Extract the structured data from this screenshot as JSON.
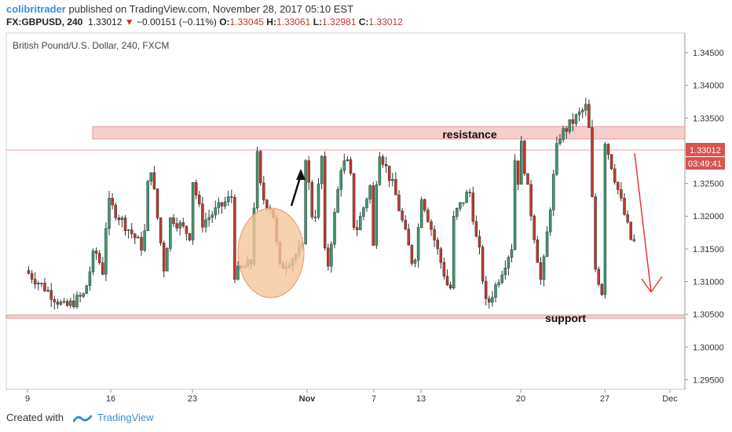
{
  "header": {
    "publisher": "colibritrader",
    "published_text": "published on TradingView.com, November 28, 2017 05:10 EST",
    "symbol": "FX:GBPUSD, 240",
    "last": "1.33012",
    "change": "−0.00151 (−0.11%)",
    "open_label": "O:",
    "open": "1.33045",
    "high_label": "H:",
    "high": "1.33061",
    "low_label": "L:",
    "low": "1.32981",
    "close_label": "C:",
    "close": "1.33012"
  },
  "footer": {
    "created_with": "Created with",
    "brand": "TradingView"
  },
  "colors": {
    "up": "#3d9970",
    "down": "#c0392b",
    "zone_fill": "#f5c6c6",
    "zone_border": "#d98a8a",
    "price_tag": "#d9534f",
    "arrow_red": "#e53935",
    "ellipse_fill": "#f6c79a"
  },
  "chart_data": {
    "type": "candlestick",
    "title": "British Pound/U.S. Dollar, 240, FXCM",
    "y_ticks": [
      "1.34500",
      "1.34000",
      "1.33500",
      "1.33000",
      "1.32500",
      "1.32000",
      "1.31500",
      "1.31000",
      "1.30500",
      "1.30000",
      "1.29500"
    ],
    "x_ticks": [
      "9",
      "16",
      "23",
      "Nov",
      "7",
      "13",
      "20",
      "27",
      "Dec"
    ],
    "ylim": [
      1.2935,
      1.348
    ],
    "last_price_label": "1.33012",
    "countdown_label": "03:49:41",
    "annotations": {
      "resistance_label": "resistance",
      "support_label": "support",
      "resistance_zone": [
        1.3318,
        1.3337
      ],
      "support_zone": [
        1.3044,
        1.3049
      ]
    },
    "path": [
      [
        "9",
        0,
        1.3117
      ],
      [
        "9",
        0.05,
        1.309
      ],
      [
        "9",
        0.1,
        1.306
      ],
      [
        "9",
        0.15,
        1.308
      ],
      [
        "9",
        0.2,
        1.311
      ],
      [
        "9",
        0.3,
        1.315
      ],
      [
        "9",
        0.45,
        1.319
      ],
      [
        "9",
        0.6,
        1.323
      ],
      [
        "9",
        0.75,
        1.327
      ],
      [
        "9",
        0.9,
        1.33
      ],
      [
        "16",
        0,
        1.33
      ],
      [
        "16",
        0.1,
        1.329
      ],
      [
        "16",
        0.2,
        1.327
      ],
      [
        "16",
        0.3,
        1.323
      ],
      [
        "16",
        0.4,
        1.321
      ],
      [
        "16",
        0.5,
        1.318
      ],
      [
        "16",
        0.6,
        1.317
      ],
      [
        "16",
        0.75,
        1.316
      ],
      [
        "16",
        0.9,
        1.315
      ],
      [
        "23",
        0,
        1.317
      ],
      [
        "23",
        0.15,
        1.313
      ],
      [
        "23",
        0.3,
        1.319
      ],
      [
        "23",
        0.45,
        1.326
      ],
      [
        "23",
        0.55,
        1.324
      ],
      [
        "23",
        0.7,
        1.315
      ],
      [
        "23",
        0.85,
        1.31
      ],
      [
        "23",
        1.0,
        1.308
      ],
      [
        "Nov",
        -0.7,
        1.316
      ],
      [
        "Nov",
        -0.5,
        1.32
      ],
      [
        "Nov",
        -0.3,
        1.324
      ],
      [
        "Nov",
        -0.15,
        1.328
      ],
      [
        "Nov",
        0,
        1.33
      ],
      [
        "Nov",
        0.1,
        1.328
      ],
      [
        "Nov",
        0.2,
        1.325
      ],
      [
        "Nov",
        0.3,
        1.312
      ],
      [
        "Nov",
        0.4,
        1.308
      ],
      [
        "Nov",
        0.5,
        1.306
      ],
      [
        "Nov",
        0.65,
        1.309
      ],
      [
        "Nov",
        0.8,
        1.312
      ],
      [
        "Nov",
        0.9,
        1.316
      ],
      [
        "7",
        0,
        1.318
      ],
      [
        "7",
        0.2,
        1.315
      ],
      [
        "7",
        0.4,
        1.311
      ],
      [
        "7",
        0.6,
        1.312
      ],
      [
        "7",
        0.8,
        1.315
      ],
      [
        "13",
        0,
        1.315
      ],
      [
        "13",
        0.15,
        1.312
      ],
      [
        "13",
        0.3,
        1.31
      ],
      [
        "13",
        0.45,
        1.312
      ],
      [
        "13",
        0.6,
        1.316
      ],
      [
        "13",
        0.8,
        1.32
      ],
      [
        "13",
        1.0,
        1.322
      ],
      [
        "20",
        0,
        1.325
      ],
      [
        "20",
        0.15,
        1.324
      ],
      [
        "20",
        0.3,
        1.324
      ],
      [
        "20",
        0.45,
        1.325
      ],
      [
        "20",
        0.6,
        1.329
      ],
      [
        "20",
        0.8,
        1.331
      ],
      [
        "20",
        1.0,
        1.332
      ],
      [
        "27",
        -0.2,
        1.332
      ],
      [
        "27",
        0,
        1.333
      ],
      [
        "27",
        0.05,
        1.337
      ],
      [
        "27",
        0.15,
        1.332
      ],
      [
        "27",
        0.3,
        1.3301
      ]
    ]
  }
}
